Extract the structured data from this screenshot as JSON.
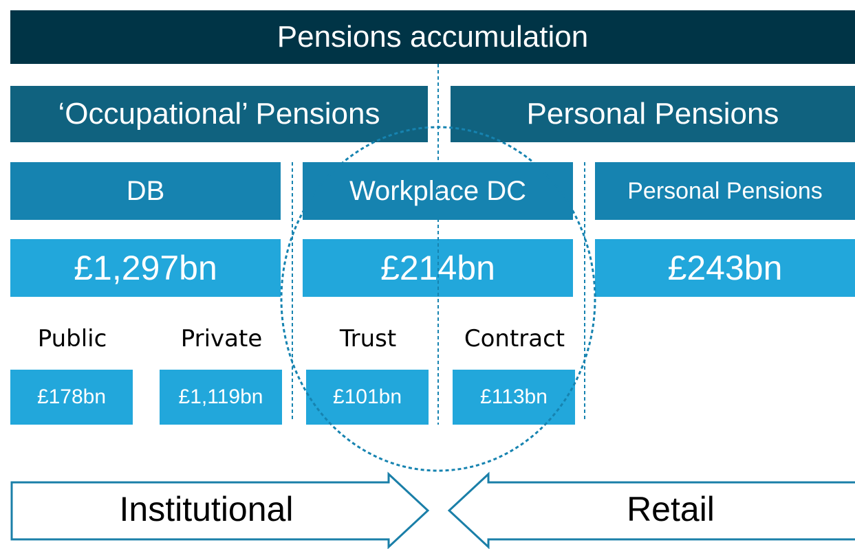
{
  "header": {
    "title": "Pensions accumulation"
  },
  "sections": [
    {
      "label": "‘Occupational’ Pensions"
    },
    {
      "label": "Personal Pensions"
    }
  ],
  "categories": [
    {
      "label": "DB",
      "total": "£1,297bn"
    },
    {
      "label": "Workplace DC",
      "total": "£214bn"
    },
    {
      "label": "Personal Pensions",
      "total": "£243bn"
    }
  ],
  "subcategories": [
    {
      "label": "Public",
      "total": "£178bn"
    },
    {
      "label": "Private",
      "total": "£1,119bn"
    },
    {
      "label": "Trust",
      "total": "£101bn"
    },
    {
      "label": "Contract",
      "total": "£113bn"
    }
  ],
  "arrows": [
    {
      "label": "Institutional"
    },
    {
      "label": "Retail"
    }
  ]
}
